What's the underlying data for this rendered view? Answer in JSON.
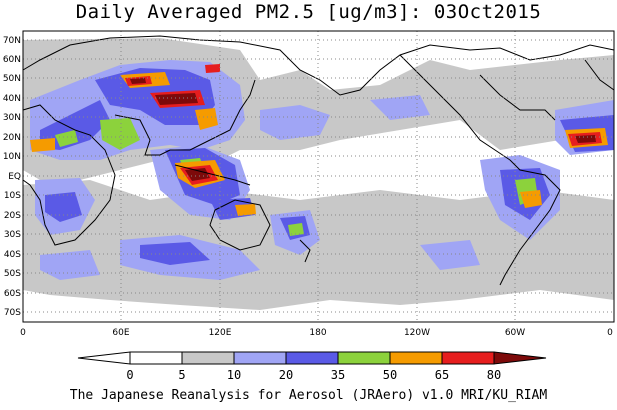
{
  "title": "Daily Averaged PM2.5 [ug/m3]: 03Oct2015",
  "latitude_labels": [
    "70N",
    "60N",
    "50N",
    "40N",
    "30N",
    "20N",
    "10N",
    "EQ",
    "10S",
    "20S",
    "30S",
    "40S",
    "50S",
    "60S",
    "70S"
  ],
  "longitude_labels": [
    "0",
    "60E",
    "120E",
    "180",
    "120W",
    "60W",
    "0"
  ],
  "colorbar": {
    "levels": [
      "0",
      "5",
      "10",
      "20",
      "35",
      "50",
      "65",
      "80"
    ],
    "colors": [
      "#ffffff",
      "#c8c8c8",
      "#a0a5f5",
      "#5a5ae6",
      "#8cd23c",
      "#f59b00",
      "#e61e1e",
      "#7d0a0a"
    ]
  },
  "footer": "The Japanese Reanalysis for Aerosol (JRAero) v1.0 MRI/KU_RIAM"
}
